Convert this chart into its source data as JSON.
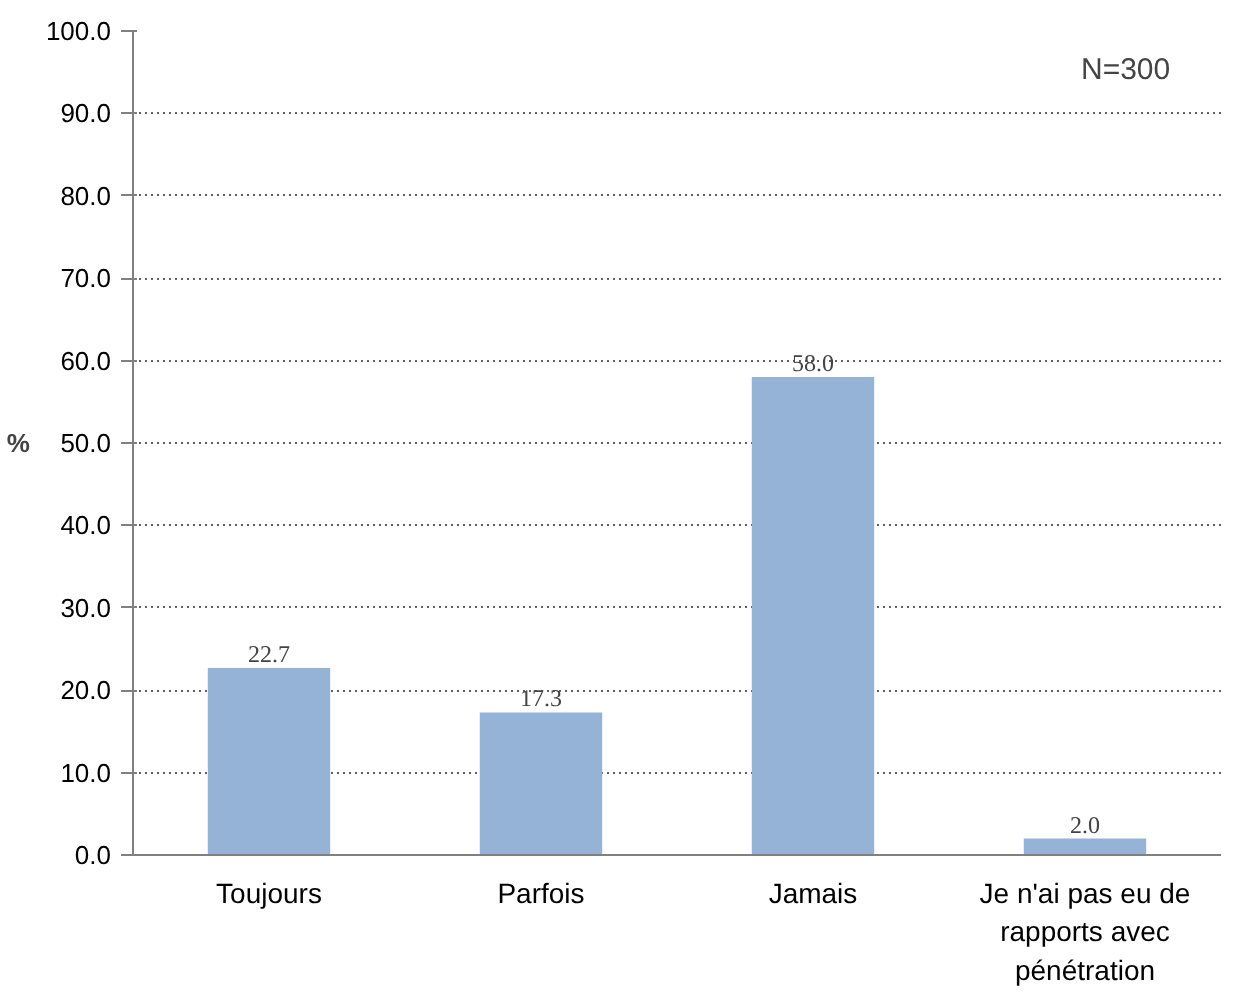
{
  "chart_data": {
    "type": "bar",
    "ylabel": "%",
    "categories": [
      "Toujours",
      "Parfois",
      "Jamais",
      "Je n'ai pas eu de rapports avec pénétration"
    ],
    "values": [
      22.7,
      17.3,
      58.0,
      2.0
    ],
    "value_labels": [
      "22.7",
      "17.3",
      "58.0",
      "2.0"
    ],
    "color": "#95b3d7",
    "ylim": [
      0,
      100
    ],
    "yticks": [
      {
        "value": 0,
        "label": "0.0"
      },
      {
        "value": 10,
        "label": "10.0"
      },
      {
        "value": 20,
        "label": "20.0"
      },
      {
        "value": 30,
        "label": "30.0"
      },
      {
        "value": 40,
        "label": "40.0"
      },
      {
        "value": 50,
        "label": "50.0"
      },
      {
        "value": 60,
        "label": "60.0"
      },
      {
        "value": 70,
        "label": "70.0"
      },
      {
        "value": 80,
        "label": "80.0"
      },
      {
        "value": 90,
        "label": "90.0"
      },
      {
        "value": 100,
        "label": "100.0"
      }
    ],
    "grid": "y",
    "annotations": [
      "N=300"
    ]
  }
}
